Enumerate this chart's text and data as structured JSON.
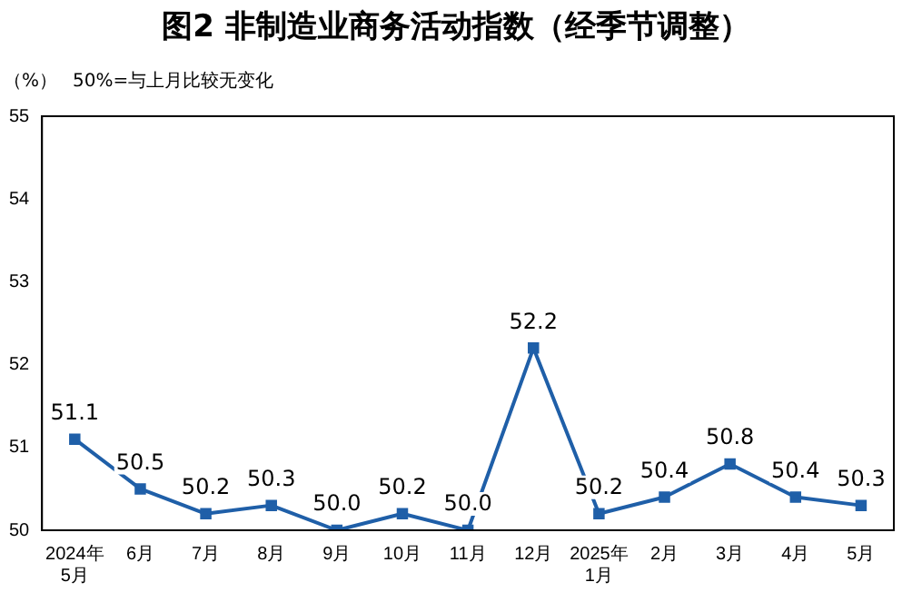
{
  "chart_data": {
    "type": "line",
    "title": "图2  非制造业商务活动指数（经季节调整）",
    "ylabel": "（%）",
    "annotations": [
      "50%=与上月比较无变化"
    ],
    "categories": [
      "2024年\n5月",
      "6月",
      "7月",
      "8月",
      "9月",
      "10月",
      "11月",
      "12月",
      "2025年\n1月",
      "2月",
      "3月",
      "4月",
      "5月"
    ],
    "series": [
      {
        "color": "#1f5fa8",
        "values": [
          51.1,
          50.5,
          50.2,
          50.3,
          50.0,
          50.2,
          50.0,
          52.2,
          50.2,
          50.4,
          50.8,
          50.4,
          50.3
        ],
        "value_labels": [
          "51.1",
          "50.5",
          "50.2",
          "50.3",
          "50.0",
          "50.2",
          "50.0",
          "52.2",
          "50.2",
          "50.4",
          "50.8",
          "50.4",
          "50.3"
        ]
      }
    ],
    "ylim": [
      50,
      55
    ],
    "yticks": [
      50,
      51,
      52,
      53,
      54,
      55
    ],
    "grid": false,
    "legend": false,
    "marker": "square",
    "line_style": "solid"
  }
}
